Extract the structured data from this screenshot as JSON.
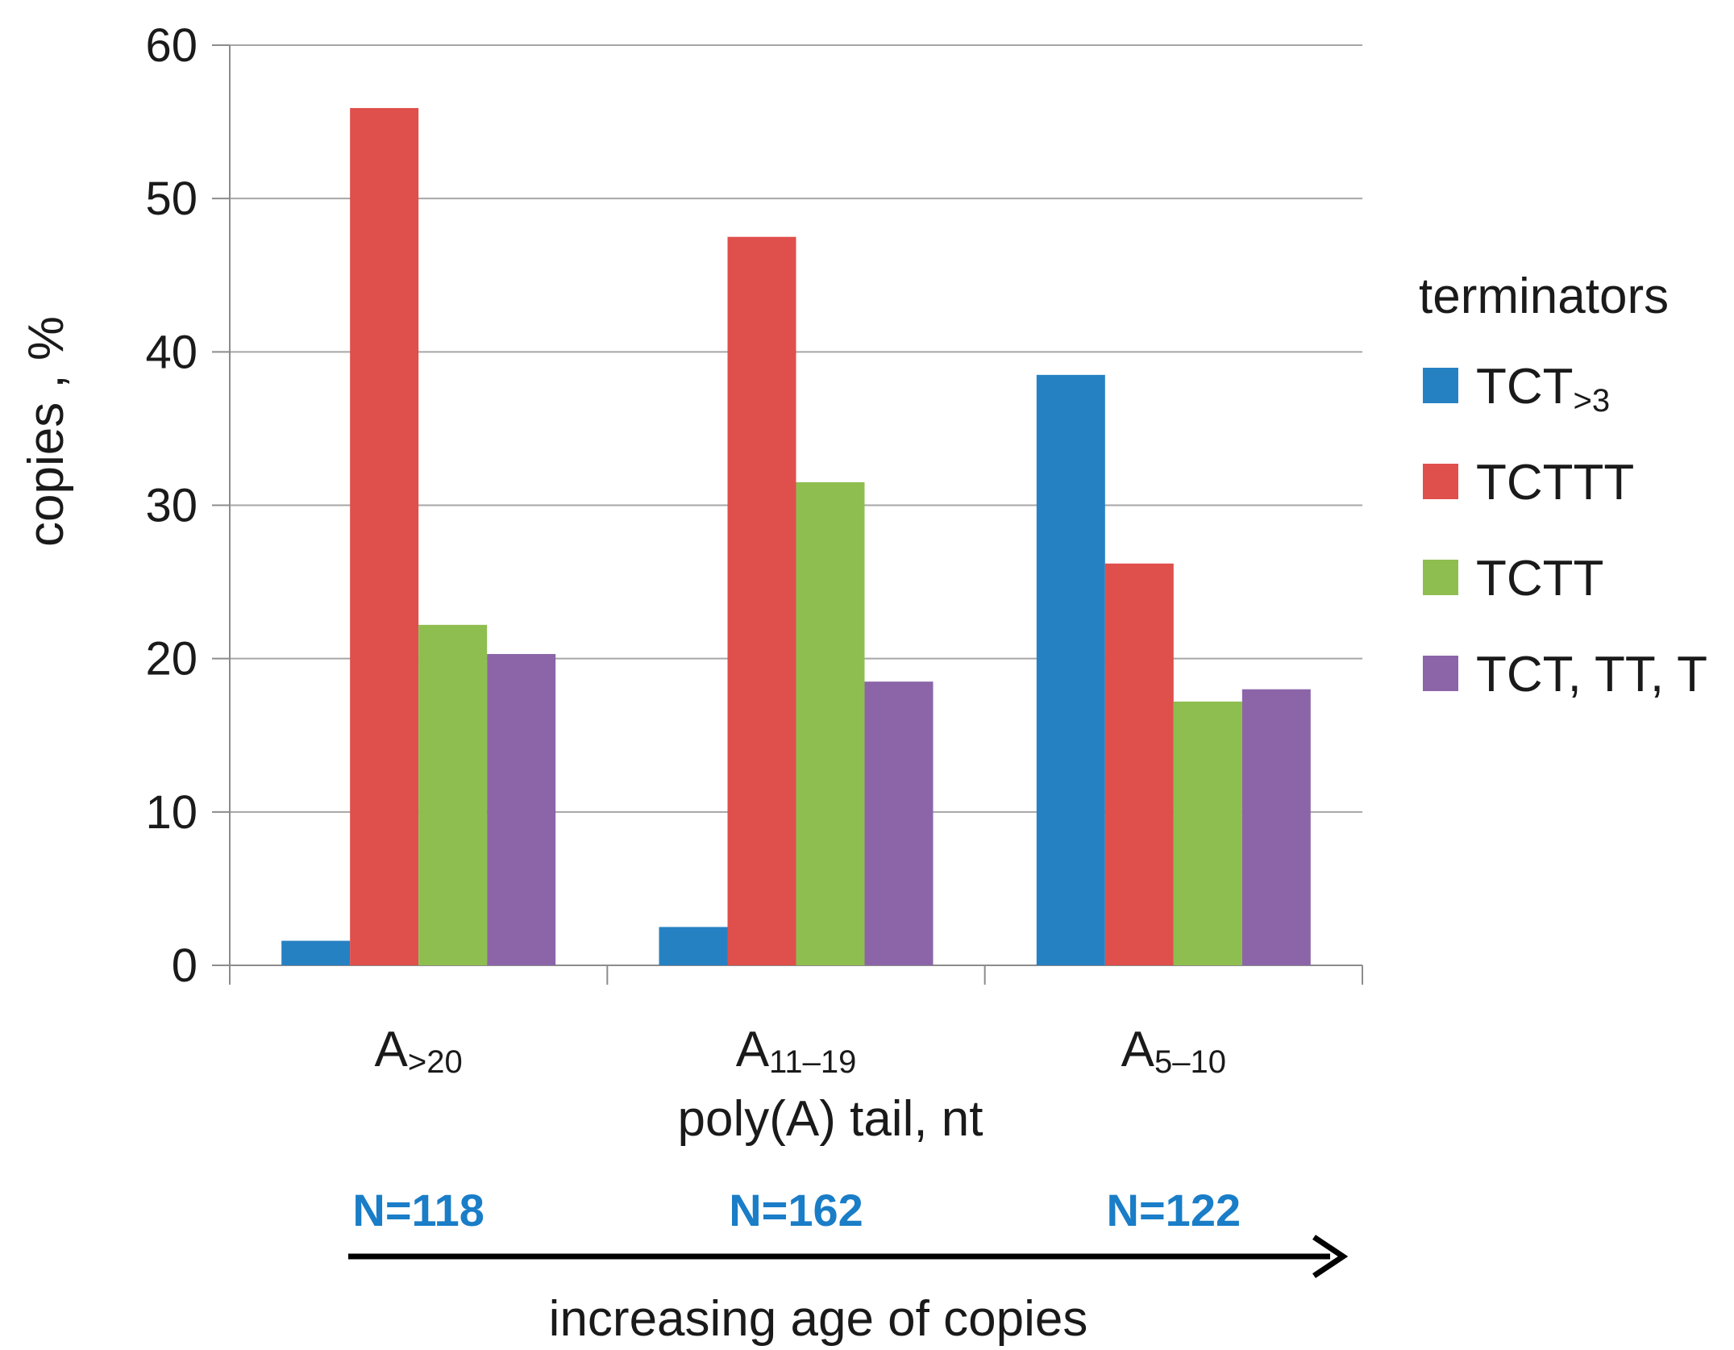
{
  "chart_data": {
    "type": "bar",
    "title": "",
    "ylabel": "copies , %",
    "xlabel": "poly(A) tail, nt",
    "ylim": [
      0,
      60
    ],
    "yticks": [
      0,
      10,
      20,
      30,
      40,
      50,
      60
    ],
    "grid": true,
    "categories": [
      {
        "main": "A",
        "sub": ">20"
      },
      {
        "main": "A",
        "sub": "11–19"
      },
      {
        "main": "A",
        "sub": "5–10"
      }
    ],
    "legend": {
      "title": "terminators",
      "position": "right"
    },
    "series": [
      {
        "name": "TCT",
        "name_sub": ">3",
        "color": "#2681c3",
        "values": [
          1.6,
          2.5,
          38.5
        ]
      },
      {
        "name": "TCTTT",
        "name_sub": "",
        "color": "#df4f4c",
        "values": [
          55.9,
          47.5,
          26.2
        ]
      },
      {
        "name": "TCTT",
        "name_sub": "",
        "color": "#8fbe50",
        "values": [
          22.2,
          31.5,
          17.2
        ]
      },
      {
        "name": "TCT, TT, T",
        "name_sub": "",
        "color": "#8c65a8",
        "values": [
          20.3,
          18.5,
          18.0
        ]
      }
    ],
    "counts": [
      "N=118",
      "N=162",
      "N=122"
    ],
    "counts_color": "#1a7dc7",
    "arrow_label": "increasing age of copies"
  }
}
